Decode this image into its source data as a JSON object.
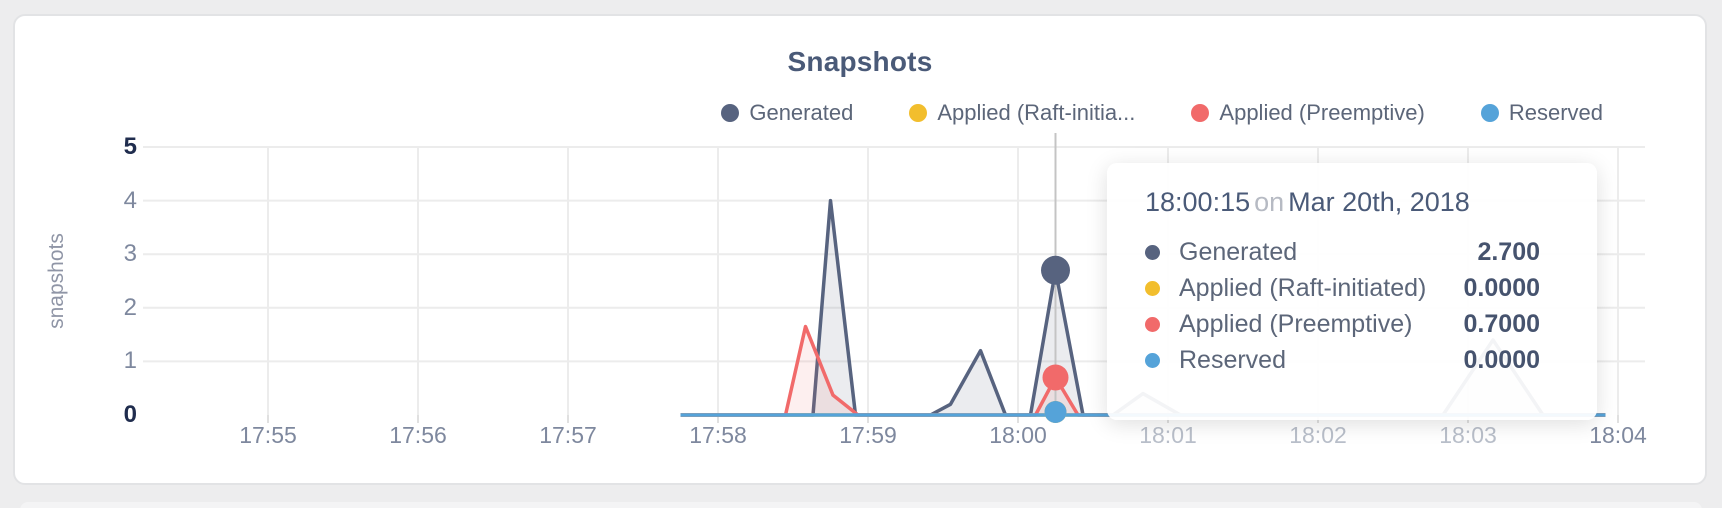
{
  "title": "Snapshots",
  "y_axis_label": "snapshots",
  "legend": [
    {
      "label": "Generated",
      "color": "#57637f"
    },
    {
      "label": "Applied (Raft-initia...",
      "color": "#f2be2d"
    },
    {
      "label": "Applied (Preemptive)",
      "color": "#f16a6a"
    },
    {
      "label": "Reserved",
      "color": "#55a3d9"
    }
  ],
  "tooltip": {
    "time": "18:00:15",
    "connector": "on",
    "date": "Mar 20th, 2018",
    "rows": [
      {
        "label": "Generated",
        "value": "2.700",
        "color": "#57637f"
      },
      {
        "label": "Applied (Raft-initiated)",
        "value": "0.0000",
        "color": "#f2be2d"
      },
      {
        "label": "Applied (Preemptive)",
        "value": "0.7000",
        "color": "#f16a6a"
      },
      {
        "label": "Reserved",
        "value": "0.0000",
        "color": "#55a3d9"
      }
    ]
  },
  "chart_data": {
    "type": "area",
    "title": "Snapshots",
    "ylabel": "snapshots",
    "xlabel": "",
    "ylim": [
      0,
      5
    ],
    "y_ticks": [
      0,
      1,
      2,
      3,
      4,
      5
    ],
    "x_ticks": [
      "17:55",
      "17:56",
      "17:57",
      "17:58",
      "17:59",
      "18:00",
      "18:01",
      "18:02",
      "18:03",
      "18:04"
    ],
    "grid": true,
    "legend_position": "top-right",
    "series": [
      {
        "name": "Generated",
        "color": "#57637f",
        "fill": "rgba(87,99,127,0.12)",
        "points": [
          [
            "17:57:45",
            0
          ],
          [
            "17:58:38",
            0
          ],
          [
            "17:58:45",
            4.0
          ],
          [
            "17:58:55",
            0
          ],
          [
            "17:59:25",
            0
          ],
          [
            "17:59:33",
            0.2
          ],
          [
            "17:59:45",
            1.2
          ],
          [
            "17:59:55",
            0
          ],
          [
            "18:00:05",
            0
          ],
          [
            "18:00:15",
            2.7
          ],
          [
            "18:00:26",
            0
          ],
          [
            "18:00:38",
            0
          ],
          [
            "18:00:50",
            0.4
          ],
          [
            "18:01:05",
            0
          ],
          [
            "18:02:50",
            0
          ],
          [
            "18:03:10",
            1.4
          ],
          [
            "18:03:30",
            0
          ],
          [
            "18:03:55",
            0
          ]
        ]
      },
      {
        "name": "Applied (Raft-initiated)",
        "color": "#f2be2d",
        "fill": "rgba(242,190,45,0.10)",
        "points": [
          [
            "17:57:45",
            0
          ],
          [
            "18:03:55",
            0
          ]
        ]
      },
      {
        "name": "Applied (Preemptive)",
        "color": "#f16a6a",
        "fill": "rgba(241,106,106,0.11)",
        "points": [
          [
            "17:57:45",
            0
          ],
          [
            "17:58:27",
            0
          ],
          [
            "17:58:35",
            1.65
          ],
          [
            "17:58:46",
            0.37
          ],
          [
            "17:58:56",
            0
          ],
          [
            "18:00:07",
            0
          ],
          [
            "18:00:15",
            0.7
          ],
          [
            "18:00:24",
            0
          ],
          [
            "18:03:55",
            0
          ]
        ]
      },
      {
        "name": "Reserved",
        "color": "#55a3d9",
        "fill": "rgba(85,163,217,0.0)",
        "points": [
          [
            "17:57:45",
            0
          ],
          [
            "18:03:55",
            0
          ]
        ]
      }
    ],
    "hover": {
      "time": "18:00:15",
      "markers": [
        {
          "series": "Applied (Raft-initiated)",
          "value": 0,
          "r": 11
        },
        {
          "series": "Reserved",
          "value": 0,
          "r": 11
        },
        {
          "series": "Applied (Preemptive)",
          "value": 0.7,
          "r": 13
        },
        {
          "series": "Generated",
          "value": 2.7,
          "r": 14.5
        }
      ]
    }
  }
}
